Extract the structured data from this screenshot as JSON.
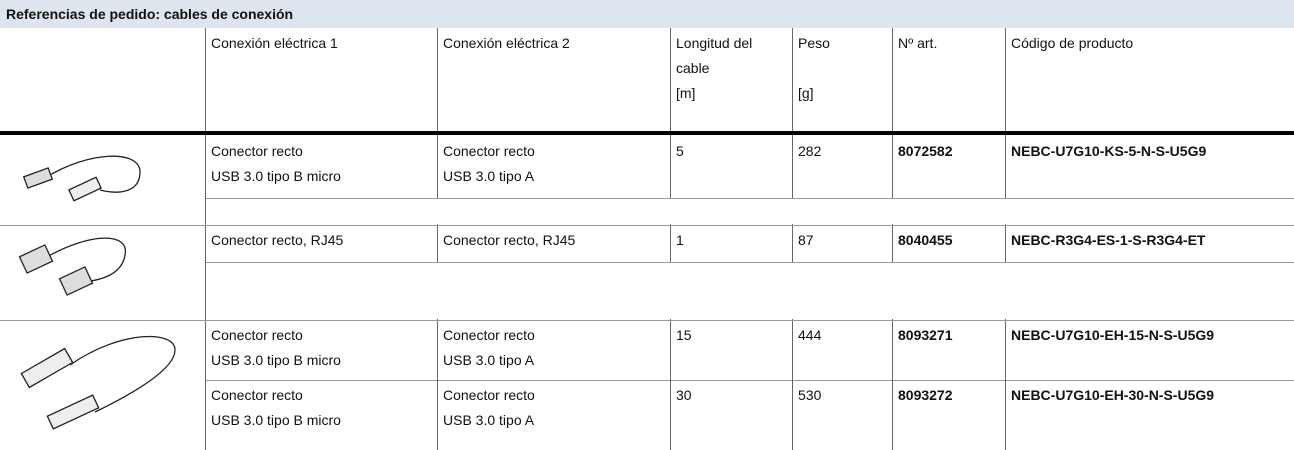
{
  "title": "Referencias de pedido: cables de conexión",
  "header": {
    "connection_1": "Conexión eléctrica 1",
    "connection_2": "Conexión eléctrica 2",
    "length": [
      "Longitud del",
      "cable",
      "[m]"
    ],
    "weight": [
      "Peso",
      "[g]"
    ],
    "article_no": "Nº art.",
    "product_code": "Código de producto"
  },
  "rows": [
    {
      "connection_1": [
        "Conector recto",
        "USB 3.0 tipo B micro"
      ],
      "connection_2": [
        "Conector recto",
        "USB 3.0 tipo A"
      ],
      "length": 5,
      "weight": 282,
      "article_no": 8072582,
      "product_code": "NEBC-U7G10-KS-5-N-S-U5G9"
    },
    {
      "connection_1": [
        "Conector recto, RJ45"
      ],
      "connection_2": [
        "Conector recto, RJ45"
      ],
      "length": 1,
      "weight": 87,
      "article_no": 8040455,
      "product_code": "NEBC-R3G4-ES-1-S-R3G4-ET"
    },
    {
      "connection_1": [
        "Conector recto",
        "USB 3.0 tipo B micro"
      ],
      "connection_2": [
        "Conector recto",
        "USB 3.0 tipo A"
      ],
      "length": 15,
      "weight": 444,
      "article_no": 8093271,
      "product_code": "NEBC-U7G10-EH-15-N-S-U5G9"
    },
    {
      "connection_1": [
        "Conector recto",
        "USB 3.0 tipo B micro"
      ],
      "connection_2": [
        "Conector recto",
        "USB 3.0 tipo A"
      ],
      "length": 30,
      "weight": 530,
      "article_no": 8093272,
      "product_code": "NEBC-U7G10-EH-30-N-S-U5G9"
    }
  ]
}
